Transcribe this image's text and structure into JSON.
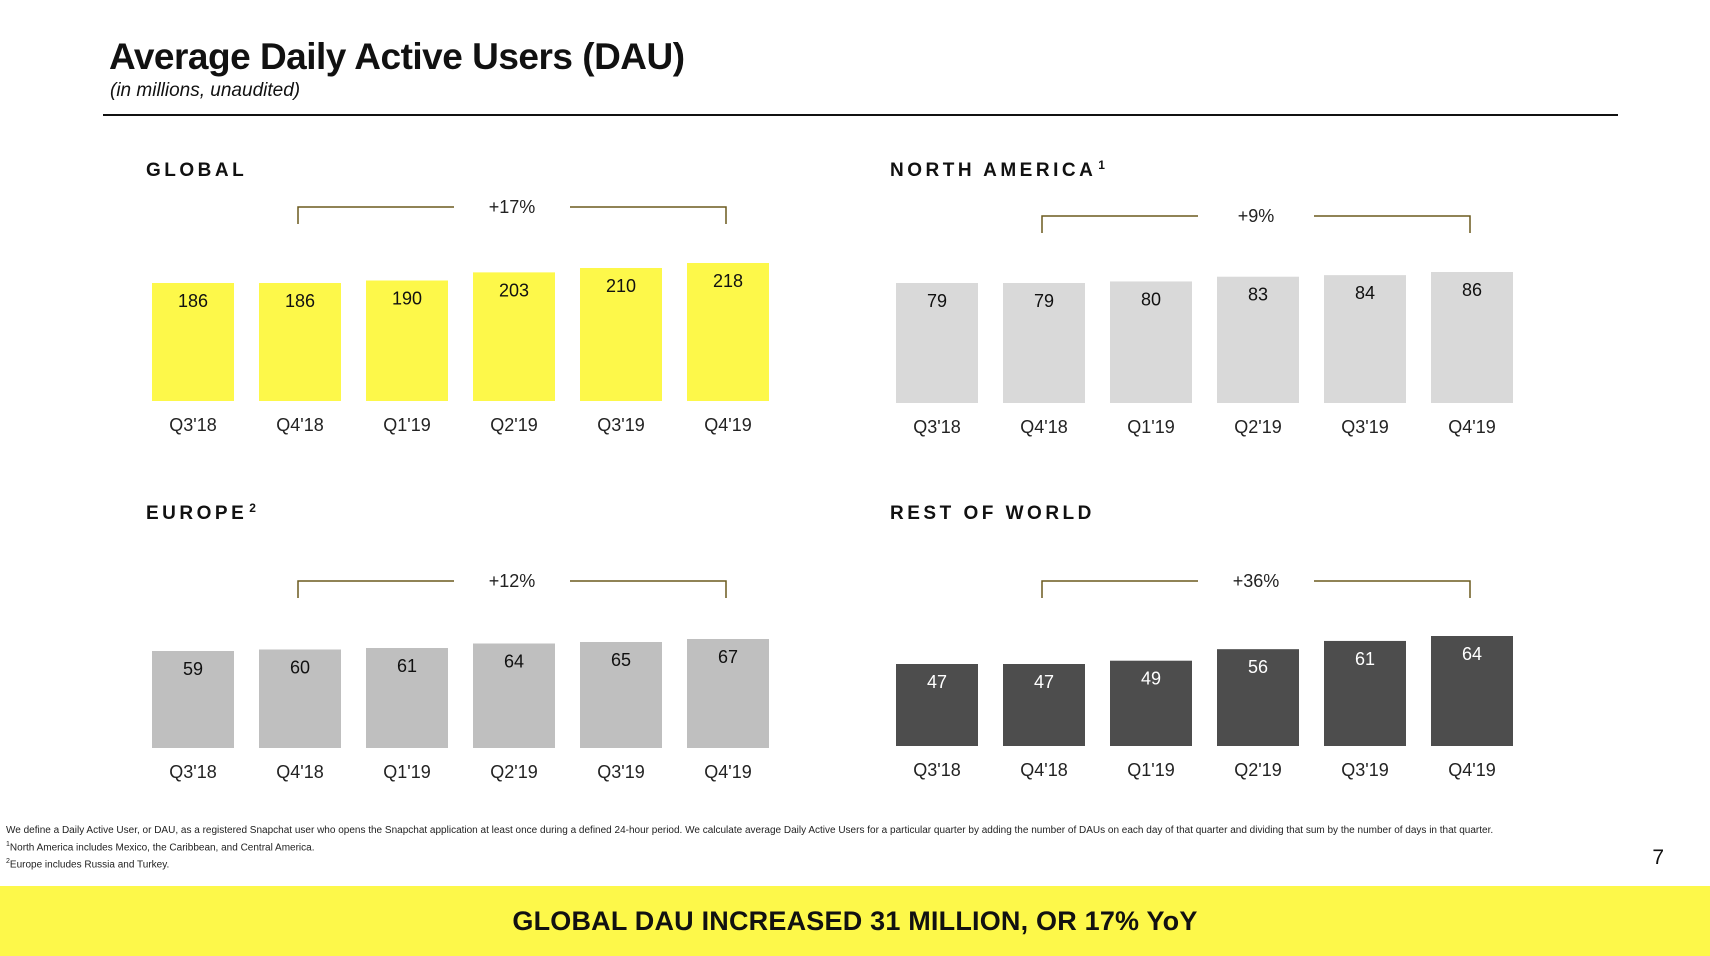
{
  "header": {
    "title": "Average Daily Active Users (DAU)",
    "subtitle": "(in millions, unaudited)"
  },
  "panels": {
    "global": {
      "title": "GLOBAL",
      "sup": ""
    },
    "north_america": {
      "title": "NORTH AMERICA",
      "sup": "1"
    },
    "europe": {
      "title": "EUROPE",
      "sup": "2"
    },
    "rest_of_world": {
      "title": "REST OF WORLD",
      "sup": ""
    }
  },
  "chart_data": [
    {
      "id": "global",
      "type": "bar",
      "title": "GLOBAL",
      "categories": [
        "Q3'18",
        "Q4'18",
        "Q1'19",
        "Q2'19",
        "Q3'19",
        "Q4'19"
      ],
      "values": [
        186,
        186,
        190,
        203,
        210,
        218
      ],
      "growth_annotation": "+17%",
      "color": "#fdf84a"
    },
    {
      "id": "north_america",
      "type": "bar",
      "title": "NORTH AMERICA",
      "categories": [
        "Q3'18",
        "Q4'18",
        "Q1'19",
        "Q2'19",
        "Q3'19",
        "Q4'19"
      ],
      "values": [
        79,
        79,
        80,
        83,
        84,
        86
      ],
      "growth_annotation": "+9%",
      "color": "#d9d9d9"
    },
    {
      "id": "europe",
      "type": "bar",
      "title": "EUROPE",
      "categories": [
        "Q3'18",
        "Q4'18",
        "Q1'19",
        "Q2'19",
        "Q3'19",
        "Q4'19"
      ],
      "values": [
        59,
        60,
        61,
        64,
        65,
        67
      ],
      "growth_annotation": "+12%",
      "color": "#bfbfbf"
    },
    {
      "id": "rest_of_world",
      "type": "bar",
      "title": "REST OF WORLD",
      "categories": [
        "Q3'18",
        "Q4'18",
        "Q1'19",
        "Q2'19",
        "Q3'19",
        "Q4'19"
      ],
      "values": [
        47,
        47,
        49,
        56,
        61,
        64
      ],
      "growth_annotation": "+36%",
      "color": "#4d4d4d",
      "label_color": "#ffffff"
    }
  ],
  "footnotes": {
    "definition": "We define a Daily Active User, or DAU, as a registered Snapchat user who opens the Snapchat application at least once during a defined 24-hour period. We calculate average Daily Active Users for a particular quarter by adding the number of DAUs on each day of that quarter and dividing that sum by the number of days in that quarter.",
    "note1_marker": "1",
    "note1": "North America includes Mexico, the Caribbean, and Central America.",
    "note2_marker": "2",
    "note2": "Europe includes Russia and Turkey."
  },
  "page_number": "7",
  "banner": {
    "text": "GLOBAL DAU INCREASED 31 MILLION, OR 17% YoY"
  },
  "colors": {
    "accent": "#fdf84a",
    "bracket": "#6b5a1e"
  }
}
